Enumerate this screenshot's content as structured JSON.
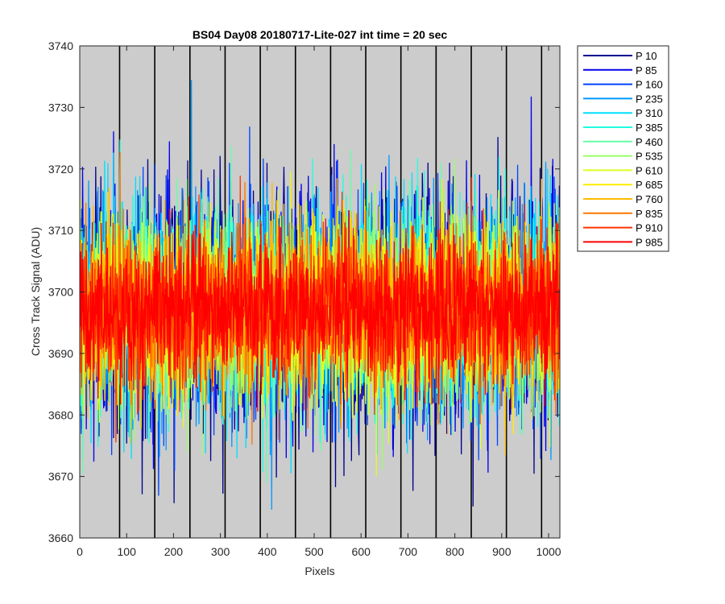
{
  "chart_data": {
    "type": "line",
    "title": "BS04 Day08 20180717-Lite-027 int time = 20 sec",
    "xlabel": "Pixels",
    "ylabel": "Cross Track Signal (ADU)",
    "xlim": [
      0,
      1024
    ],
    "ylim": [
      3660,
      3740
    ],
    "xticks": [
      0,
      100,
      200,
      300,
      400,
      500,
      600,
      700,
      800,
      900,
      1000
    ],
    "yticks": [
      3660,
      3670,
      3680,
      3690,
      3700,
      3710,
      3720,
      3730,
      3740
    ],
    "background_color": "#cccccc",
    "vertical_lines_x": [
      85,
      160,
      235,
      310,
      385,
      460,
      535,
      610,
      685,
      760,
      835,
      910,
      985
    ],
    "vertical_line_color": "#000000",
    "legend_position": "outside-top-right",
    "signal": {
      "mean": 3697,
      "noise_std": 7.5,
      "points_per_series": 1024
    },
    "series": [
      {
        "name": "P 10",
        "color": "#00008f"
      },
      {
        "name": "P 85",
        "color": "#0000ea"
      },
      {
        "name": "P 160",
        "color": "#0044ff"
      },
      {
        "name": "P 235",
        "color": "#0099ff"
      },
      {
        "name": "P 310",
        "color": "#00dfff"
      },
      {
        "name": "P 385",
        "color": "#1fffe0"
      },
      {
        "name": "P 460",
        "color": "#66ffaa"
      },
      {
        "name": "P 535",
        "color": "#99ff66"
      },
      {
        "name": "P 610",
        "color": "#ddff22"
      },
      {
        "name": "P 685",
        "color": "#ffee00"
      },
      {
        "name": "P 760",
        "color": "#ffbb00"
      },
      {
        "name": "P 835",
        "color": "#ff7700"
      },
      {
        "name": "P 910",
        "color": "#ff3300"
      },
      {
        "name": "P 985",
        "color": "#ff0000"
      }
    ]
  }
}
